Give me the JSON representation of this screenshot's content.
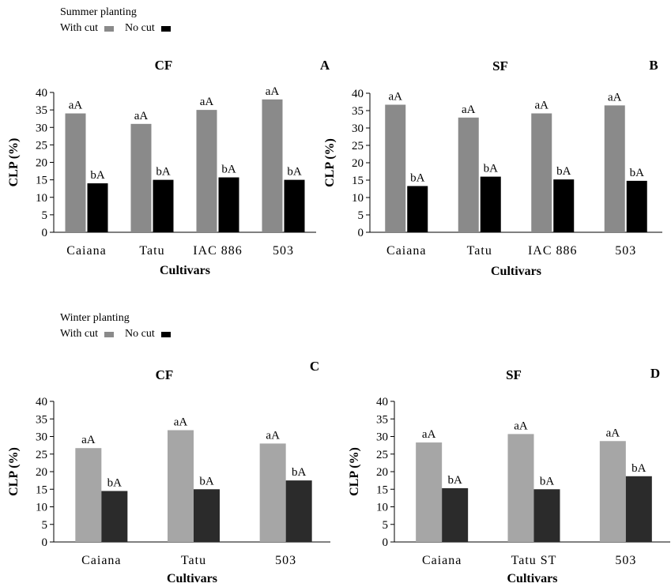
{
  "groups": [
    {
      "title": "Summer planting",
      "legend": [
        {
          "label": "With cut",
          "color": "#8a8a8a"
        },
        {
          "label": "No cut",
          "color": "#000000"
        }
      ]
    },
    {
      "title": "Winter planting",
      "legend": [
        {
          "label": "With cut",
          "color": "#8a8a8a"
        },
        {
          "label": "No cut",
          "color": "#000000"
        }
      ]
    }
  ],
  "chart_data": [
    {
      "type": "bar",
      "title": "CF",
      "panel_letter": "A",
      "xlabel": "Cultivars",
      "ylabel": "CLP (%)",
      "ylim": [
        0,
        40
      ],
      "yticks": [
        0,
        5,
        10,
        15,
        20,
        25,
        30,
        35,
        40
      ],
      "categories": [
        "Caiana",
        "Tatu",
        "IAC 886",
        "503"
      ],
      "series": [
        {
          "name": "With cut",
          "color": "#8a8a8a",
          "values": [
            34,
            31,
            35,
            38
          ],
          "labels": [
            "aA",
            "aA",
            "aA",
            "aA"
          ]
        },
        {
          "name": "No cut",
          "color": "#000000",
          "values": [
            14,
            15,
            15.7,
            15
          ],
          "labels": [
            "bA",
            "bA",
            "bA",
            "bA"
          ]
        }
      ]
    },
    {
      "type": "bar",
      "title": "SF",
      "panel_letter": "B",
      "xlabel": "Cultivars",
      "ylabel": "CLP (%)",
      "ylim": [
        0,
        40
      ],
      "yticks": [
        0,
        5,
        10,
        15,
        20,
        25,
        30,
        35,
        40
      ],
      "categories": [
        "Caiana",
        "Tatu",
        "IAC 886",
        "503"
      ],
      "series": [
        {
          "name": "With cut",
          "color": "#8a8a8a",
          "values": [
            36.7,
            33,
            34.2,
            36.5
          ],
          "labels": [
            "aA",
            "aA",
            "aA",
            "aA"
          ]
        },
        {
          "name": "No cut",
          "color": "#000000",
          "values": [
            13.3,
            16,
            15.2,
            14.8
          ],
          "labels": [
            "bA",
            "bA",
            "bA",
            "bA"
          ]
        }
      ]
    },
    {
      "type": "bar",
      "title": "CF",
      "panel_letter": "C",
      "xlabel": "Cultivars",
      "ylabel": "CLP (%)",
      "ylim": [
        0,
        40
      ],
      "yticks": [
        0,
        5,
        10,
        15,
        20,
        25,
        30,
        35,
        40
      ],
      "categories": [
        "Caiana",
        "Tatu",
        "503"
      ],
      "series": [
        {
          "name": "With cut",
          "color": "#a6a6a6",
          "values": [
            26.7,
            31.8,
            28
          ],
          "labels": [
            "aA",
            "aA",
            "aA"
          ]
        },
        {
          "name": "No cut",
          "color": "#2b2b2b",
          "values": [
            14.5,
            15,
            17.5
          ],
          "labels": [
            "bA",
            "bA",
            "bA"
          ]
        }
      ]
    },
    {
      "type": "bar",
      "title": "SF",
      "panel_letter": "D",
      "xlabel": "Cultivars",
      "ylabel": "CLP (%)",
      "ylim": [
        0,
        40
      ],
      "yticks": [
        0,
        5,
        10,
        15,
        20,
        25,
        30,
        35,
        40
      ],
      "categories": [
        "Caiana",
        "Tatu ST",
        "503"
      ],
      "series": [
        {
          "name": "With cut",
          "color": "#a6a6a6",
          "values": [
            28.3,
            30.7,
            28.7
          ],
          "labels": [
            "aA",
            "aA",
            "aA"
          ]
        },
        {
          "name": "No cut",
          "color": "#2b2b2b",
          "values": [
            15.3,
            15,
            18.7
          ],
          "labels": [
            "bA",
            "bA",
            "bA"
          ]
        }
      ]
    }
  ]
}
